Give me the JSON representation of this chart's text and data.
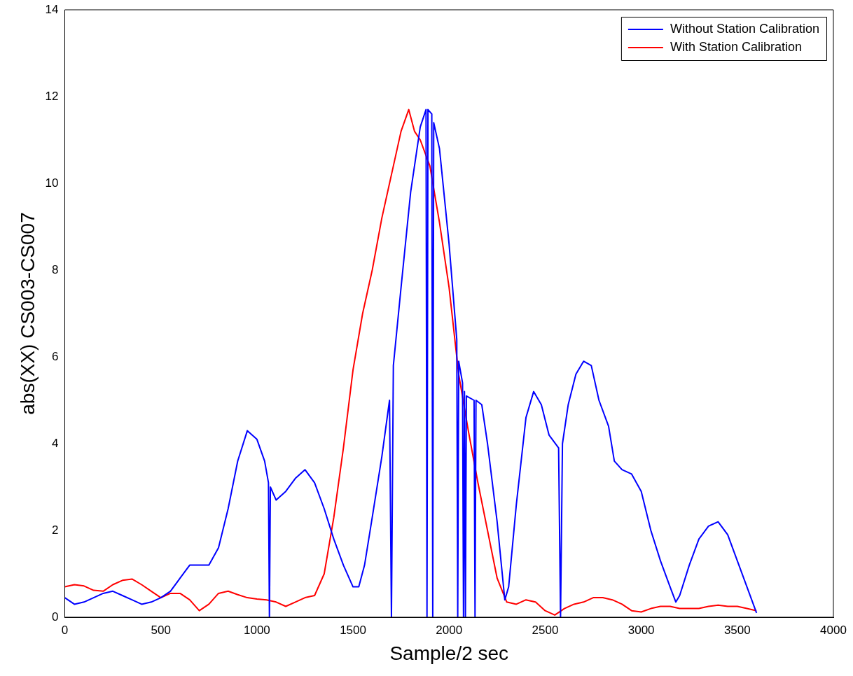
{
  "chart_data": {
    "type": "line",
    "xlabel": "Sample/2 sec",
    "ylabel": "abs(XX) CS003-CS007",
    "xlim": [
      0,
      4000
    ],
    "xticks": [
      0,
      500,
      1000,
      1500,
      2000,
      2500,
      3000,
      3500,
      4000
    ],
    "ylim": [
      0,
      14
    ],
    "yticks": [
      0,
      2,
      4,
      6,
      8,
      10,
      12,
      14
    ],
    "grid": false,
    "legend": "top right",
    "marker": "none",
    "line_style": "solid",
    "series": [
      {
        "name": "Without Station Calibration",
        "color": "#0000ff",
        "x": [
          0,
          50,
          100,
          150,
          200,
          250,
          300,
          350,
          400,
          450,
          500,
          550,
          600,
          650,
          700,
          750,
          800,
          850,
          900,
          950,
          1000,
          1040,
          1060,
          1065,
          1070,
          1100,
          1150,
          1200,
          1250,
          1300,
          1350,
          1400,
          1450,
          1500,
          1530,
          1560,
          1600,
          1650,
          1690,
          1700,
          1710,
          1750,
          1800,
          1850,
          1880,
          1885,
          1890,
          1910,
          1915,
          1920,
          1950,
          2000,
          2040,
          2045,
          2050,
          2070,
          2075,
          2080,
          2085,
          2090,
          2130,
          2135,
          2140,
          2170,
          2200,
          2250,
          2290,
          2310,
          2350,
          2400,
          2440,
          2480,
          2520,
          2570,
          2580,
          2590,
          2620,
          2660,
          2700,
          2740,
          2780,
          2830,
          2860,
          2900,
          2950,
          3000,
          3050,
          3100,
          3150,
          3180,
          3200,
          3250,
          3300,
          3350,
          3400,
          3450,
          3500,
          3550,
          3600
        ],
        "values": [
          0.45,
          0.3,
          0.35,
          0.45,
          0.55,
          0.6,
          0.5,
          0.4,
          0.3,
          0.35,
          0.45,
          0.6,
          0.9,
          1.2,
          1.2,
          1.2,
          1.6,
          2.5,
          3.6,
          4.3,
          4.1,
          3.6,
          3.1,
          0,
          3.0,
          2.7,
          2.9,
          3.2,
          3.4,
          3.1,
          2.5,
          1.8,
          1.2,
          0.7,
          0.7,
          1.2,
          2.3,
          3.7,
          5.0,
          0,
          5.8,
          7.6,
          9.8,
          11.3,
          11.7,
          0,
          11.7,
          11.6,
          0,
          11.4,
          10.8,
          8.6,
          6.4,
          0,
          5.9,
          5.4,
          0,
          5.2,
          0,
          5.1,
          5.0,
          0,
          5.0,
          4.9,
          4.0,
          2.2,
          0.4,
          0.7,
          2.6,
          4.6,
          5.2,
          4.9,
          4.2,
          3.9,
          0,
          4.0,
          4.9,
          5.6,
          5.9,
          5.8,
          5.0,
          4.4,
          3.6,
          3.4,
          3.3,
          2.9,
          2.0,
          1.3,
          0.7,
          0.35,
          0.5,
          1.2,
          1.8,
          2.1,
          2.2,
          1.9,
          1.3,
          0.7,
          0.1
        ]
      },
      {
        "name": "With Station Calibration",
        "color": "#ff0000",
        "x": [
          0,
          50,
          100,
          150,
          200,
          250,
          300,
          350,
          400,
          450,
          500,
          550,
          600,
          650,
          700,
          750,
          800,
          850,
          900,
          950,
          1000,
          1050,
          1100,
          1150,
          1200,
          1250,
          1300,
          1350,
          1400,
          1450,
          1500,
          1550,
          1600,
          1650,
          1700,
          1750,
          1790,
          1820,
          1850,
          1900,
          1950,
          2000,
          2050,
          2100,
          2150,
          2200,
          2250,
          2300,
          2350,
          2400,
          2450,
          2500,
          2550,
          2600,
          2650,
          2700,
          2750,
          2800,
          2850,
          2900,
          2950,
          3000,
          3050,
          3100,
          3150,
          3200,
          3250,
          3300,
          3350,
          3400,
          3450,
          3500,
          3550,
          3600
        ],
        "values": [
          0.7,
          0.75,
          0.72,
          0.62,
          0.6,
          0.75,
          0.85,
          0.88,
          0.75,
          0.6,
          0.45,
          0.55,
          0.55,
          0.4,
          0.15,
          0.3,
          0.55,
          0.6,
          0.52,
          0.45,
          0.42,
          0.4,
          0.35,
          0.25,
          0.35,
          0.45,
          0.5,
          1.0,
          2.3,
          3.9,
          5.7,
          7.0,
          8.0,
          9.2,
          10.2,
          11.2,
          11.7,
          11.2,
          11.0,
          10.4,
          9.1,
          7.6,
          5.6,
          4.3,
          3.1,
          2.0,
          0.9,
          0.35,
          0.3,
          0.4,
          0.35,
          0.15,
          0.05,
          0.2,
          0.3,
          0.35,
          0.45,
          0.45,
          0.4,
          0.3,
          0.15,
          0.12,
          0.2,
          0.25,
          0.25,
          0.2,
          0.2,
          0.2,
          0.25,
          0.28,
          0.25,
          0.25,
          0.2,
          0.15
        ]
      }
    ]
  }
}
